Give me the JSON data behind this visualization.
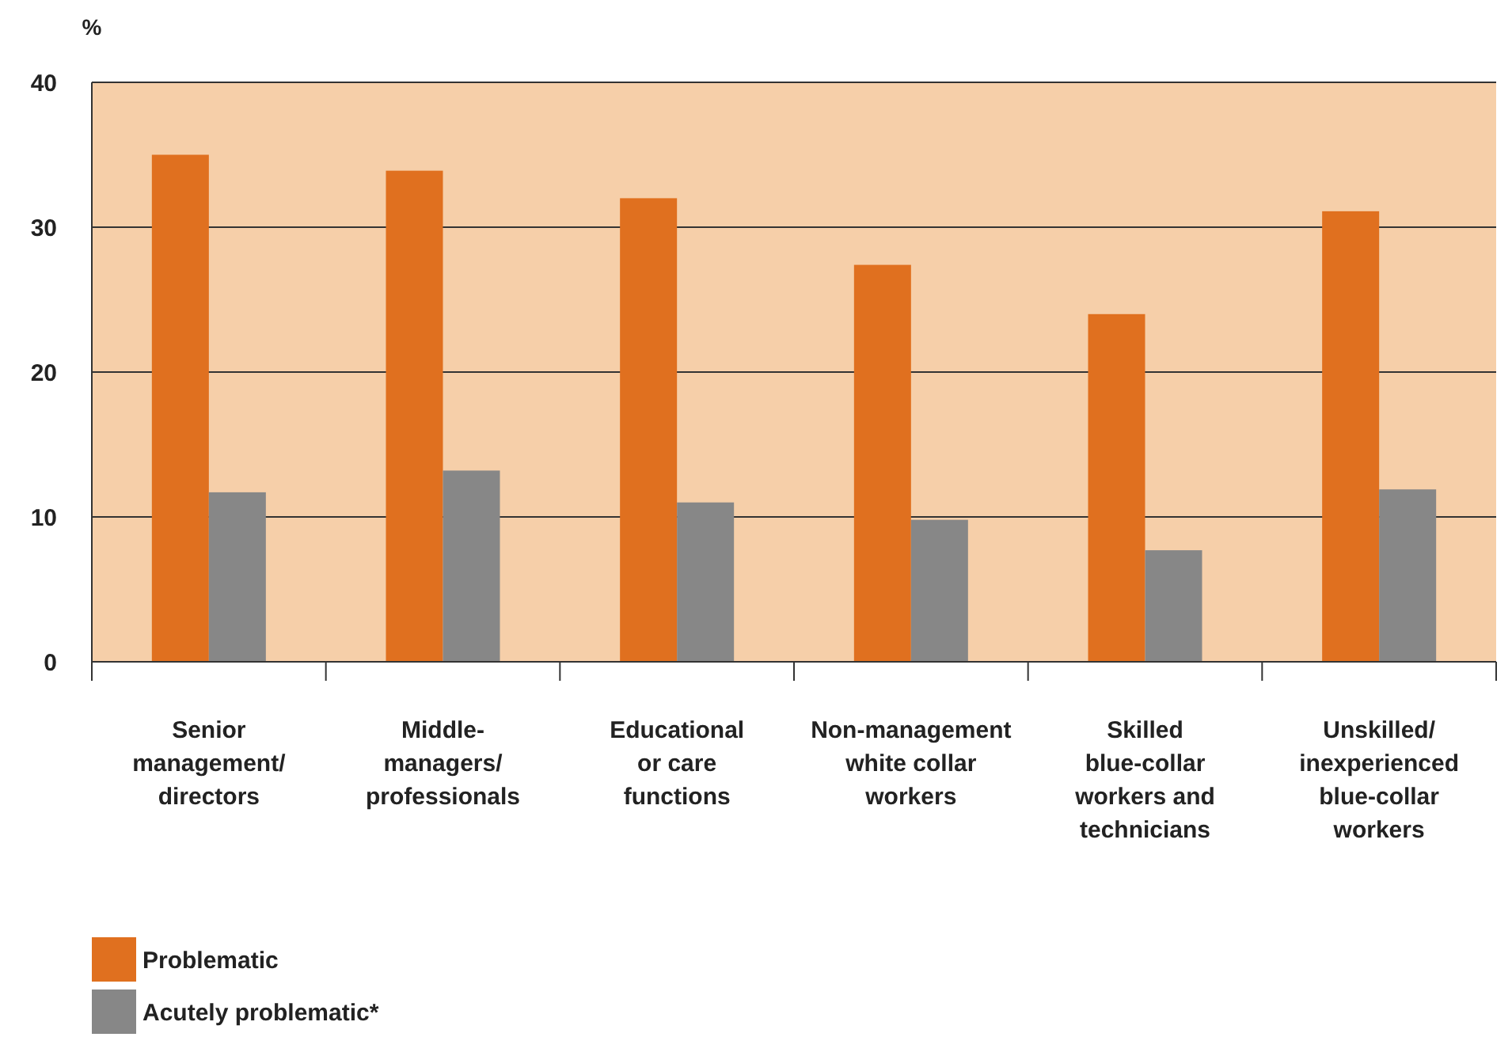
{
  "chart_data": {
    "type": "bar",
    "ylabel": "%",
    "categories": [
      "Senior\nmanagement/\ndirectors",
      "Middle-\nmanagers/\nprofessionals",
      "Educational\nor care\nfunctions",
      "Non-management\nwhite collar\nworkers",
      "Skilled\nblue-collar\nworkers and\ntechnicians",
      "Unskilled/\ninexperienced\nblue-collar\nworkers"
    ],
    "series": [
      {
        "name": "Problematic",
        "color": "#e0701f",
        "values": [
          35.0,
          33.9,
          32.0,
          27.4,
          24.0,
          31.1
        ]
      },
      {
        "name": "Acutely problematic*",
        "color": "#878787",
        "values": [
          11.7,
          13.2,
          11.0,
          9.8,
          7.7,
          11.9
        ]
      }
    ],
    "ylim": [
      0,
      40
    ],
    "yticks": [
      0,
      10,
      20,
      30,
      40
    ],
    "grid": "y",
    "legend": "bottom left"
  }
}
